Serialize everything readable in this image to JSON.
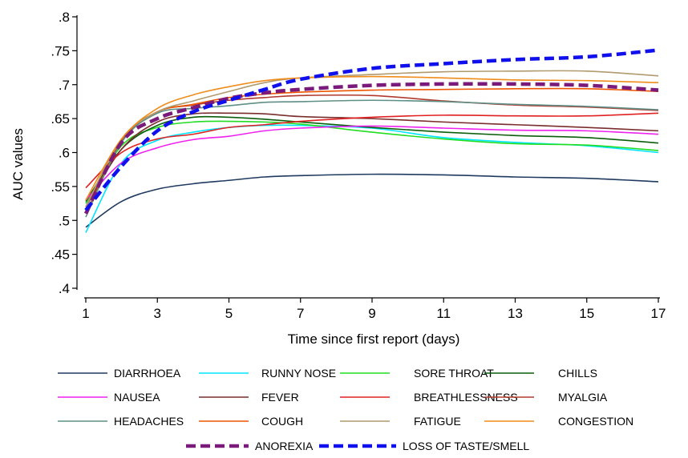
{
  "chart_data": {
    "type": "line",
    "xlabel": "Time since first report (days)",
    "ylabel": "AUC values",
    "xlim": [
      1,
      17
    ],
    "ylim": [
      0.4,
      0.8
    ],
    "x_ticks": [
      1,
      3,
      5,
      7,
      9,
      11,
      13,
      15,
      17
    ],
    "x_tick_labels": [
      "1",
      "3",
      "5",
      "7",
      "9",
      "11",
      "13",
      "15",
      "17"
    ],
    "y_ticks": [
      0.4,
      0.45,
      0.5,
      0.55,
      0.6,
      0.65,
      0.7,
      0.75,
      0.8
    ],
    "y_tick_labels": [
      ".4",
      ".45",
      ".5",
      ".55",
      ".6",
      ".65",
      ".7",
      ".75",
      ".8"
    ],
    "grid": false,
    "legend_position": "bottom",
    "x": [
      1,
      2,
      3,
      4,
      5,
      6,
      7,
      9,
      11,
      13,
      15,
      17
    ],
    "series": [
      {
        "name": "DIARRHOEA",
        "color": "#1f3a5f",
        "dashed": false,
        "values": [
          0.49,
          0.528,
          0.546,
          0.554,
          0.559,
          0.564,
          0.566,
          0.568,
          0.567,
          0.564,
          0.562,
          0.557
        ]
      },
      {
        "name": "RUNNY NOSE",
        "color": "#00e5ff",
        "dashed": false,
        "values": [
          0.482,
          0.585,
          0.618,
          0.63,
          0.637,
          0.64,
          0.64,
          0.636,
          0.622,
          0.615,
          0.61,
          0.6
        ]
      },
      {
        "name": "SORE THROAT",
        "color": "#22dd22",
        "dashed": false,
        "values": [
          0.525,
          0.61,
          0.637,
          0.645,
          0.646,
          0.645,
          0.642,
          0.63,
          0.62,
          0.613,
          0.611,
          0.603
        ]
      },
      {
        "name": "CHILLS",
        "color": "#0b5e0b",
        "dashed": false,
        "values": [
          0.528,
          0.605,
          0.64,
          0.652,
          0.652,
          0.649,
          0.645,
          0.637,
          0.63,
          0.625,
          0.622,
          0.614
        ]
      },
      {
        "name": "NAUSEA",
        "color": "#ee22ee",
        "dashed": false,
        "values": [
          0.53,
          0.585,
          0.607,
          0.619,
          0.624,
          0.632,
          0.636,
          0.639,
          0.636,
          0.633,
          0.632,
          0.627
        ]
      },
      {
        "name": "FEVER",
        "color": "#7a2d2d",
        "dashed": false,
        "values": [
          0.52,
          0.605,
          0.645,
          0.657,
          0.658,
          0.657,
          0.653,
          0.65,
          0.645,
          0.641,
          0.637,
          0.632
        ]
      },
      {
        "name": "BREATHLESSNESS",
        "color": "#e02020",
        "dashed": false,
        "values": [
          0.548,
          0.6,
          0.62,
          0.627,
          0.637,
          0.641,
          0.646,
          0.652,
          0.655,
          0.654,
          0.654,
          0.658
        ]
      },
      {
        "name": "MYALGIA",
        "color": "#b03a2e",
        "dashed": false,
        "values": [
          0.51,
          0.617,
          0.66,
          0.67,
          0.677,
          0.681,
          0.684,
          0.684,
          0.676,
          0.67,
          0.667,
          0.662
        ]
      },
      {
        "name": "HEADACHES",
        "color": "#5f8f86",
        "dashed": false,
        "values": [
          0.505,
          0.615,
          0.658,
          0.665,
          0.669,
          0.674,
          0.675,
          0.677,
          0.675,
          0.671,
          0.668,
          0.663
        ]
      },
      {
        "name": "COUGH",
        "color": "#ee5500",
        "dashed": false,
        "values": [
          0.52,
          0.62,
          0.66,
          0.671,
          0.681,
          0.686,
          0.689,
          0.692,
          0.693,
          0.694,
          0.694,
          0.69
        ]
      },
      {
        "name": "FATIGUE",
        "color": "#b09a6e",
        "dashed": false,
        "values": [
          0.52,
          0.62,
          0.66,
          0.676,
          0.69,
          0.703,
          0.71,
          0.715,
          0.719,
          0.72,
          0.72,
          0.713
        ]
      },
      {
        "name": "CONGESTION",
        "color": "#f08c1a",
        "dashed": false,
        "values": [
          0.53,
          0.62,
          0.665,
          0.685,
          0.697,
          0.706,
          0.71,
          0.712,
          0.71,
          0.707,
          0.706,
          0.703
        ]
      },
      {
        "name": "ANOREXIA",
        "color": "#7a1a7a",
        "dashed": true,
        "values": [
          0.51,
          0.615,
          0.65,
          0.666,
          0.68,
          0.688,
          0.693,
          0.699,
          0.701,
          0.701,
          0.699,
          0.692
        ]
      },
      {
        "name": "LOSS OF TASTE/SMELL",
        "color": "#1010ee",
        "dashed": true,
        "values": [
          0.515,
          0.58,
          0.632,
          0.66,
          0.677,
          0.693,
          0.708,
          0.724,
          0.731,
          0.737,
          0.741,
          0.751
        ]
      }
    ]
  }
}
